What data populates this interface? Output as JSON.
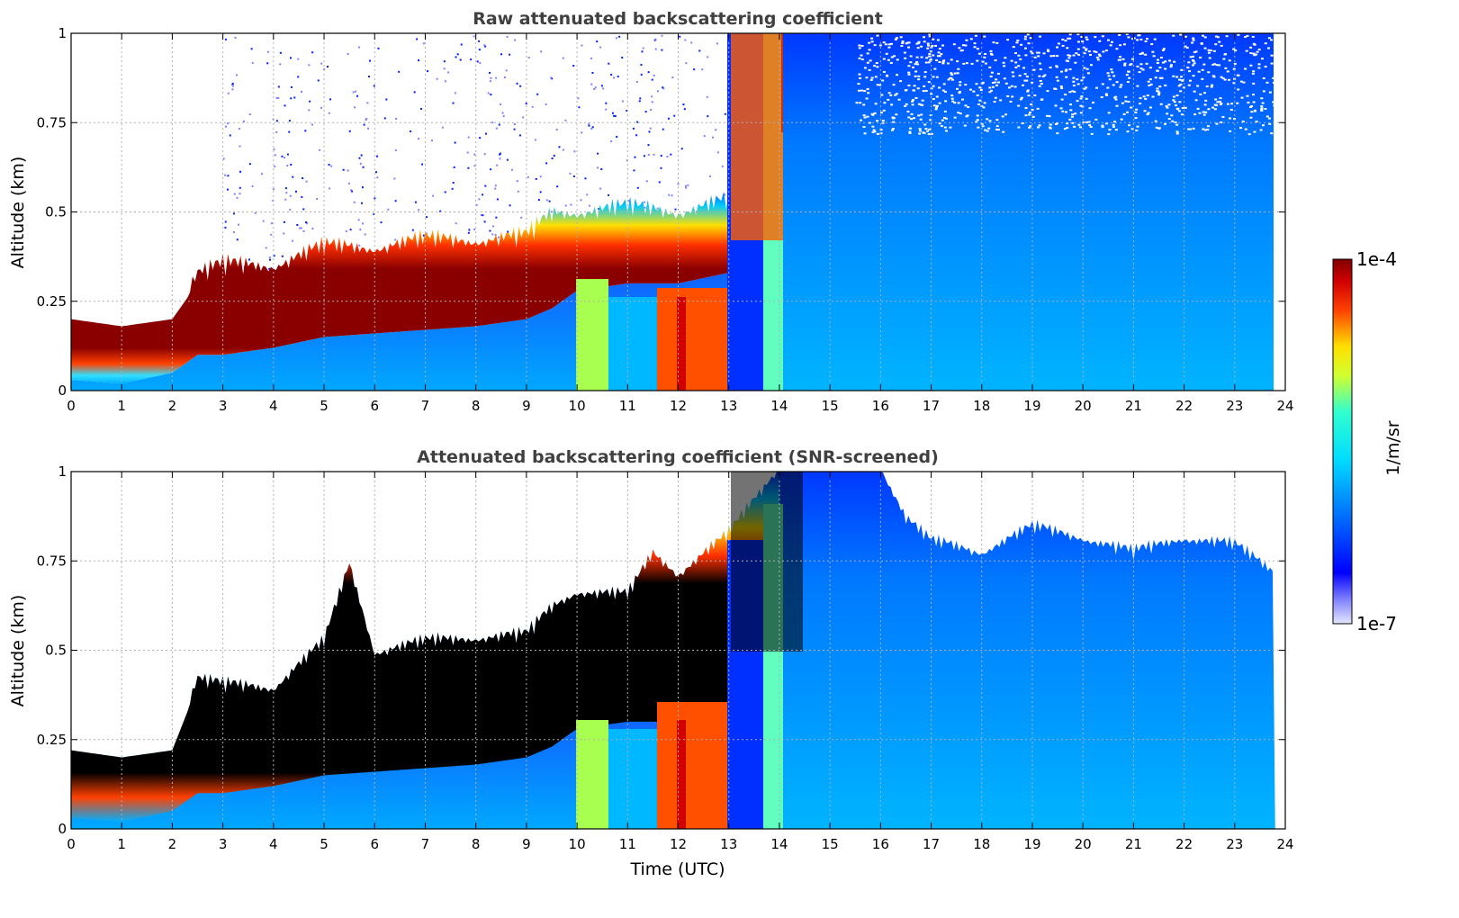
{
  "figure": {
    "colorbar": {
      "label": "1/m/sr",
      "max_label": "1e-4",
      "min_label": "1e-7",
      "range": [
        1e-07,
        0.0001
      ],
      "scale": "log",
      "colormap": "jet"
    }
  },
  "chart_data": [
    {
      "type": "heatmap",
      "title": "Raw attenuated backscattering coefficient",
      "xlabel": "",
      "ylabel": "Altitude (km)",
      "xlim": [
        0,
        24
      ],
      "ylim": [
        0,
        1
      ],
      "x_ticks": [
        "0",
        "1",
        "2",
        "3",
        "4",
        "5",
        "6",
        "7",
        "8",
        "9",
        "10",
        "11",
        "12",
        "13",
        "14",
        "15",
        "16",
        "17",
        "18",
        "19",
        "20",
        "21",
        "22",
        "23",
        "24"
      ],
      "y_ticks": [
        "0",
        "0.25",
        "0.5",
        "0.75",
        "1"
      ],
      "grid": true,
      "layer_top_km": [
        [
          0,
          0.2
        ],
        [
          1,
          0.18
        ],
        [
          2,
          0.2
        ],
        [
          2.5,
          0.3
        ],
        [
          3,
          0.32
        ],
        [
          4,
          0.33
        ],
        [
          5,
          0.37
        ],
        [
          6,
          0.38
        ],
        [
          7,
          0.39
        ],
        [
          8,
          0.4
        ],
        [
          9,
          0.4
        ],
        [
          9.5,
          0.47
        ],
        [
          10,
          0.48
        ],
        [
          11,
          0.48
        ],
        [
          12,
          0.48
        ],
        [
          13,
          0.5
        ],
        [
          14,
          0.55
        ]
      ],
      "layer_base_km": [
        [
          0,
          0.03
        ],
        [
          1,
          0.02
        ],
        [
          2,
          0.05
        ],
        [
          2.5,
          0.1
        ],
        [
          3,
          0.1
        ],
        [
          4,
          0.12
        ],
        [
          5,
          0.15
        ],
        [
          6,
          0.16
        ],
        [
          7,
          0.17
        ],
        [
          8,
          0.18
        ],
        [
          9,
          0.2
        ],
        [
          9.5,
          0.23
        ],
        [
          10,
          0.28
        ],
        [
          11,
          0.3
        ],
        [
          12,
          0.3
        ],
        [
          13,
          0.33
        ],
        [
          14,
          0.3
        ]
      ]
    },
    {
      "type": "heatmap",
      "title": "Attenuated backscattering coefficient (SNR-screened)",
      "xlabel": "Time (UTC)",
      "ylabel": "Altitude (km)",
      "xlim": [
        0,
        24
      ],
      "ylim": [
        0,
        1
      ],
      "x_ticks": [
        "0",
        "1",
        "2",
        "3",
        "4",
        "5",
        "6",
        "7",
        "8",
        "9",
        "10",
        "11",
        "12",
        "13",
        "14",
        "15",
        "16",
        "17",
        "18",
        "19",
        "20",
        "21",
        "22",
        "23",
        "24"
      ],
      "y_ticks": [
        "0",
        "0.25",
        "0.5",
        "0.75",
        "1"
      ],
      "grid": true,
      "signal_top_km": [
        [
          0,
          0.22
        ],
        [
          1,
          0.2
        ],
        [
          2,
          0.22
        ],
        [
          2.5,
          0.4
        ],
        [
          3,
          0.38
        ],
        [
          4,
          0.38
        ],
        [
          5,
          0.5
        ],
        [
          5.5,
          0.72
        ],
        [
          6,
          0.48
        ],
        [
          7,
          0.5
        ],
        [
          8,
          0.52
        ],
        [
          9,
          0.52
        ],
        [
          9.5,
          0.6
        ],
        [
          10,
          0.65
        ],
        [
          11,
          0.63
        ],
        [
          11.5,
          0.75
        ],
        [
          12,
          0.7
        ],
        [
          13,
          0.8
        ],
        [
          14,
          1.0
        ],
        [
          16,
          1.0
        ],
        [
          16.5,
          0.85
        ],
        [
          17,
          0.78
        ],
        [
          18,
          0.76
        ],
        [
          19,
          0.82
        ],
        [
          20,
          0.8
        ],
        [
          21,
          0.75
        ],
        [
          22,
          0.8
        ],
        [
          23,
          0.77
        ],
        [
          23.8,
          0.7
        ]
      ]
    }
  ]
}
